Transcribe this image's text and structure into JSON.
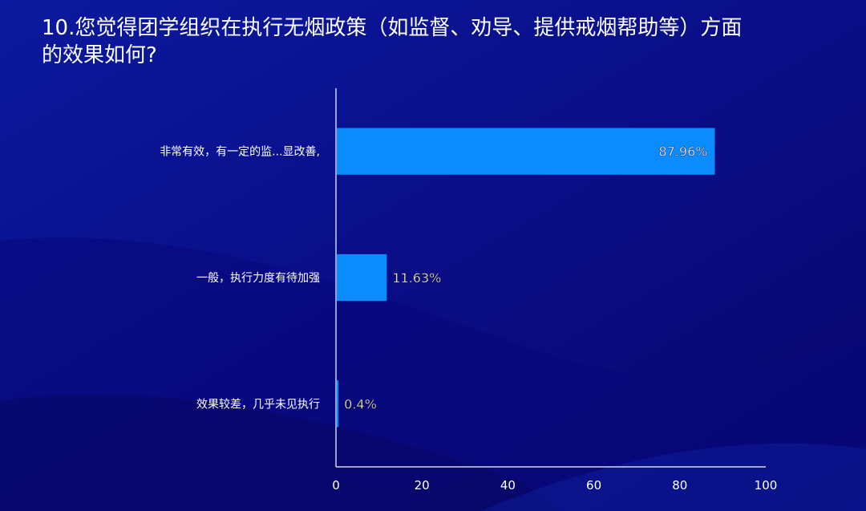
{
  "title": "10.您觉得团学组织在执行无烟政策（如监督、劝导、提供戒烟帮助等）方面的效果如何?",
  "colors": {
    "bar": "#0a8cff",
    "axis": "#ffffff"
  },
  "chart_data": {
    "type": "bar",
    "orientation": "horizontal",
    "categories": [
      "非常有效，有一定的监...显改善,",
      "一般，执行力度有待加强",
      "效果较差，几乎未见执行"
    ],
    "values": [
      87.96,
      11.63,
      0.4
    ],
    "value_labels": [
      "87.96%",
      "11.63%",
      "0.4%"
    ],
    "xlim": [
      0,
      100
    ],
    "xticks": [
      "0",
      "20",
      "40",
      "60",
      "80",
      "100"
    ],
    "grid": false,
    "legend": "none"
  }
}
